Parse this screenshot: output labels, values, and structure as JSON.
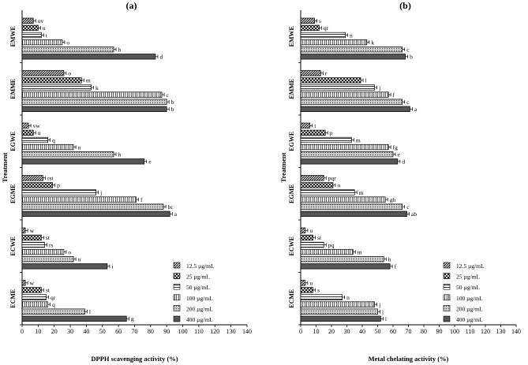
{
  "chart_data": [
    {
      "type": "bar",
      "orientation": "horizontal",
      "panel_label": "(a)",
      "xlabel": "DPPH scavenging activity (%)",
      "ylabel": "Treatment",
      "xlim": [
        0,
        140
      ],
      "xticks": [
        0,
        10,
        20,
        30,
        40,
        50,
        60,
        70,
        80,
        90,
        100,
        110,
        120,
        130,
        140
      ],
      "categories": [
        "EMWE",
        "EMME",
        "EGWE",
        "EGME",
        "ECWE",
        "ECME"
      ],
      "legend_position": "bottom-right",
      "series": [
        {
          "name": "12.5 µg/mL",
          "pattern": "diag-stripe",
          "values": [
            7,
            26,
            4,
            13,
            2,
            2
          ],
          "labels": [
            "uv",
            "o",
            "vw",
            "rst",
            "w",
            "w"
          ]
        },
        {
          "name": "25 µg/mL",
          "pattern": "crosshatch",
          "values": [
            10,
            37,
            7,
            19,
            12,
            12
          ],
          "labels": [
            "u",
            "m",
            "u",
            "p",
            "st",
            "st"
          ]
        },
        {
          "name": "50 µg/mL",
          "pattern": "horizontal",
          "values": [
            12,
            43,
            16,
            46,
            14,
            15
          ],
          "labels": [
            "t",
            "k",
            "q",
            "j",
            "rs",
            "qr"
          ]
        },
        {
          "name": "100 µg/mL",
          "pattern": "vertical",
          "values": [
            25,
            87,
            32,
            71,
            26,
            16
          ],
          "labels": [
            "o",
            "c",
            "n",
            "f",
            "o",
            "q"
          ]
        },
        {
          "name": "200 µg/mL",
          "pattern": "dots",
          "values": [
            57,
            90,
            57,
            88,
            32,
            39
          ],
          "labels": [
            "h",
            "b",
            "h",
            "bc",
            "n",
            "l"
          ]
        },
        {
          "name": "400 µg/mL",
          "pattern": "solid",
          "values": [
            83,
            90,
            76,
            92,
            53,
            65
          ],
          "labels": [
            "d",
            "b",
            "e",
            "a",
            "i",
            "g"
          ]
        }
      ]
    },
    {
      "type": "bar",
      "orientation": "horizontal",
      "panel_label": "(b)",
      "xlabel": "Metal chelating activity (%)",
      "ylabel": "Treatment",
      "xlim": [
        0,
        140
      ],
      "xticks": [
        0,
        10,
        20,
        30,
        40,
        50,
        60,
        70,
        80,
        90,
        100,
        110,
        120,
        130,
        140
      ],
      "categories": [
        "EMWE",
        "EMME",
        "EGWE",
        "EGME",
        "ECWE",
        "ECME"
      ],
      "legend_position": "bottom-right",
      "series": [
        {
          "name": "12.5 µg/mL",
          "pattern": "diag-stripe",
          "values": [
            9,
            13,
            6,
            15,
            3,
            3
          ],
          "labels": [
            "s",
            "r",
            "t",
            "pqr",
            "u",
            "u"
          ]
        },
        {
          "name": "25 µg/mL",
          "pattern": "crosshatch",
          "values": [
            12,
            39,
            16,
            21,
            8,
            8
          ],
          "labels": [
            "qr",
            "l",
            "p",
            "o",
            "st",
            "s"
          ]
        },
        {
          "name": "50 µg/mL",
          "pattern": "horizontal",
          "values": [
            29,
            48,
            33,
            35,
            15,
            27
          ],
          "labels": [
            "n",
            "j",
            "m",
            "m",
            "pq",
            "n"
          ]
        },
        {
          "name": "100 µg/mL",
          "pattern": "vertical",
          "values": [
            43,
            57,
            57,
            55,
            34,
            48
          ],
          "labels": [
            "k",
            "f",
            "fg",
            "gh",
            "m",
            "j"
          ]
        },
        {
          "name": "200 µg/mL",
          "pattern": "dots",
          "values": [
            66,
            66,
            60,
            66,
            54,
            50
          ],
          "labels": [
            "c",
            "c",
            "e",
            "c",
            "h",
            "j"
          ]
        },
        {
          "name": "400 µg/mL",
          "pattern": "solid",
          "values": [
            68,
            71,
            63,
            69,
            58,
            52
          ],
          "labels": [
            "b",
            "a",
            "d",
            "ab",
            "f",
            "i"
          ]
        }
      ]
    }
  ]
}
